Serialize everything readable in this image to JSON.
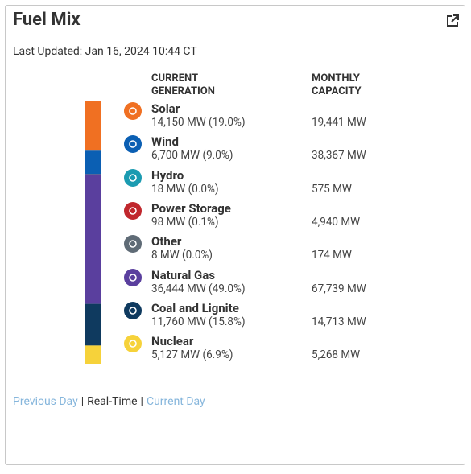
{
  "header": {
    "title": "Fuel Mix"
  },
  "last_updated": "Last Updated: Jan 16, 2024 10:44 CT",
  "columns": {
    "current": [
      "CURRENT",
      "GENERATION"
    ],
    "capacity": [
      "MONTHLY",
      "CAPACITY"
    ]
  },
  "fuels": [
    {
      "name": "Solar",
      "generation": "14,150 MW (19.0%)",
      "share": 19.0,
      "capacity": "19,441 MW",
      "color": "#f07022"
    },
    {
      "name": "Wind",
      "generation": "6,700 MW (9.0%)",
      "share": 9.0,
      "capacity": "38,367 MW",
      "color": "#0b5fb3"
    },
    {
      "name": "Hydro",
      "generation": "18 MW (0.0%)",
      "share": 0.0,
      "capacity": "575 MW",
      "color": "#1b9bb1"
    },
    {
      "name": "Power Storage",
      "generation": "98 MW (0.1%)",
      "share": 0.1,
      "capacity": "4,940 MW",
      "color": "#c0272d"
    },
    {
      "name": "Other",
      "generation": "8 MW (0.0%)",
      "share": 0.0,
      "capacity": "174 MW",
      "color": "#5f6b76"
    },
    {
      "name": "Natural Gas",
      "generation": "36,444 MW (49.0%)",
      "share": 49.0,
      "capacity": "67,739 MW",
      "color": "#5a3f9e"
    },
    {
      "name": "Coal and Lignite",
      "generation": "11,760 MW (15.8%)",
      "share": 15.8,
      "capacity": "14,713 MW",
      "color": "#0f3a5f"
    },
    {
      "name": "Nuclear",
      "generation": "5,127 MW (6.9%)",
      "share": 6.9,
      "capacity": "5,268 MW",
      "color": "#f6d23a"
    }
  ],
  "footer": {
    "links": [
      "Previous Day",
      "Real-Time",
      "Current Day"
    ],
    "active": 1,
    "separator": "|"
  }
}
